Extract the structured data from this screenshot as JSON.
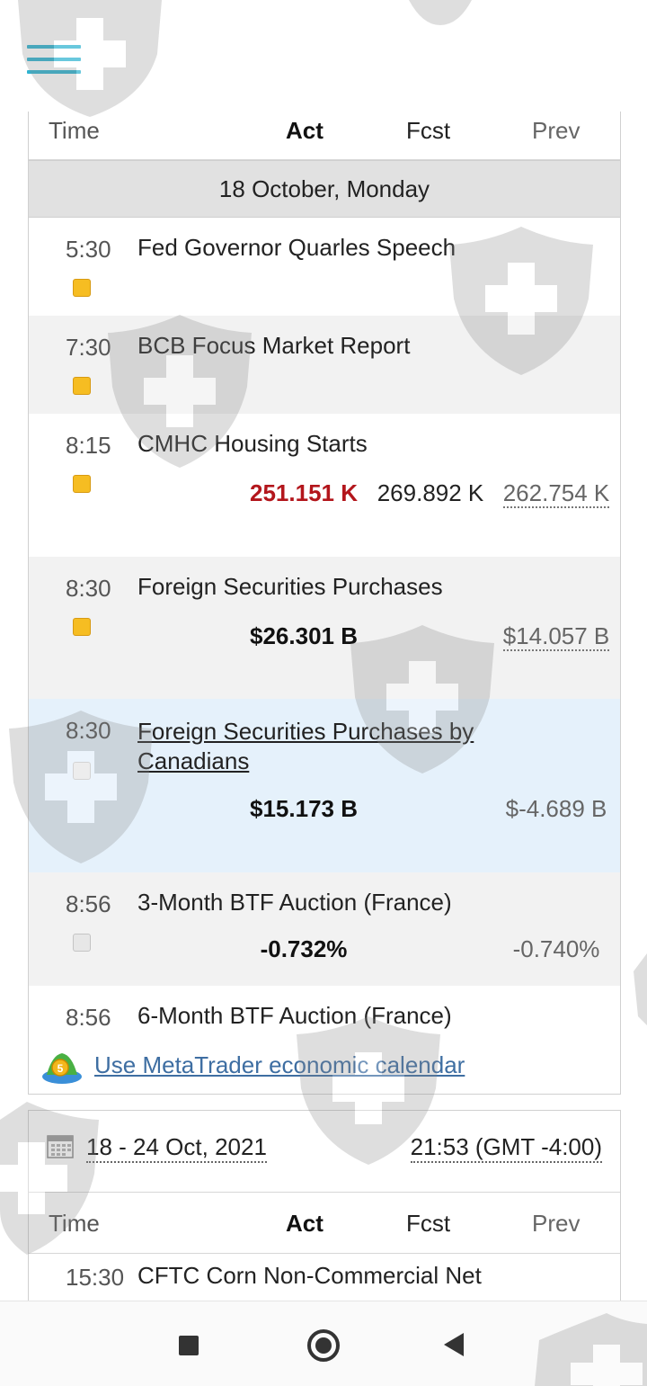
{
  "header": {
    "menu_icon": "hamburger-menu-icon"
  },
  "columns": {
    "time": "Time",
    "act": "Act",
    "fcst": "Fcst",
    "prev": "Prev"
  },
  "day": "18 October, Monday",
  "events": [
    {
      "time": "5:30",
      "title": "Fed Governor Quarles Speech",
      "importance": "medium"
    },
    {
      "time": "7:30",
      "title": "BCB Focus Market Report",
      "importance": "medium"
    },
    {
      "time": "8:15",
      "title": "CMHC Housing Starts",
      "importance": "medium",
      "act": "251.151 K",
      "fcst": "269.892 K",
      "prev": "262.754 K"
    },
    {
      "time": "8:30",
      "title": "Foreign Securities Purchases",
      "importance": "medium",
      "act": "$26.301 B",
      "prev": "$14.057 B"
    },
    {
      "time": "8:30",
      "title": "Foreign Securities Purchases by Canadians",
      "importance": "low",
      "act": "$15.173 B",
      "prev": "$-4.689 B"
    },
    {
      "time": "8:56",
      "title": "3-Month BTF Auction (France)",
      "importance": "low",
      "act": "-0.732%",
      "prev": "-0.740%"
    },
    {
      "time": "8:56",
      "title": "6-Month BTF Auction (France)"
    }
  ],
  "metatrader_link": "Use MetaTrader economic calendar",
  "widget2": {
    "date_range": "18 - 24 Oct, 2021",
    "timezone": "21:53 (GMT -4:00)",
    "columns": {
      "time": "Time",
      "act": "Act",
      "fcst": "Fcst",
      "prev": "Prev"
    },
    "first_event": {
      "time": "15:30",
      "title": "CFTC Corn Non-Commercial Net"
    }
  },
  "colors": {
    "accent": "#2fb3d0",
    "negative": "#b3161c",
    "link": "#3e6ea2",
    "medium_importance": "#f6bd22"
  }
}
